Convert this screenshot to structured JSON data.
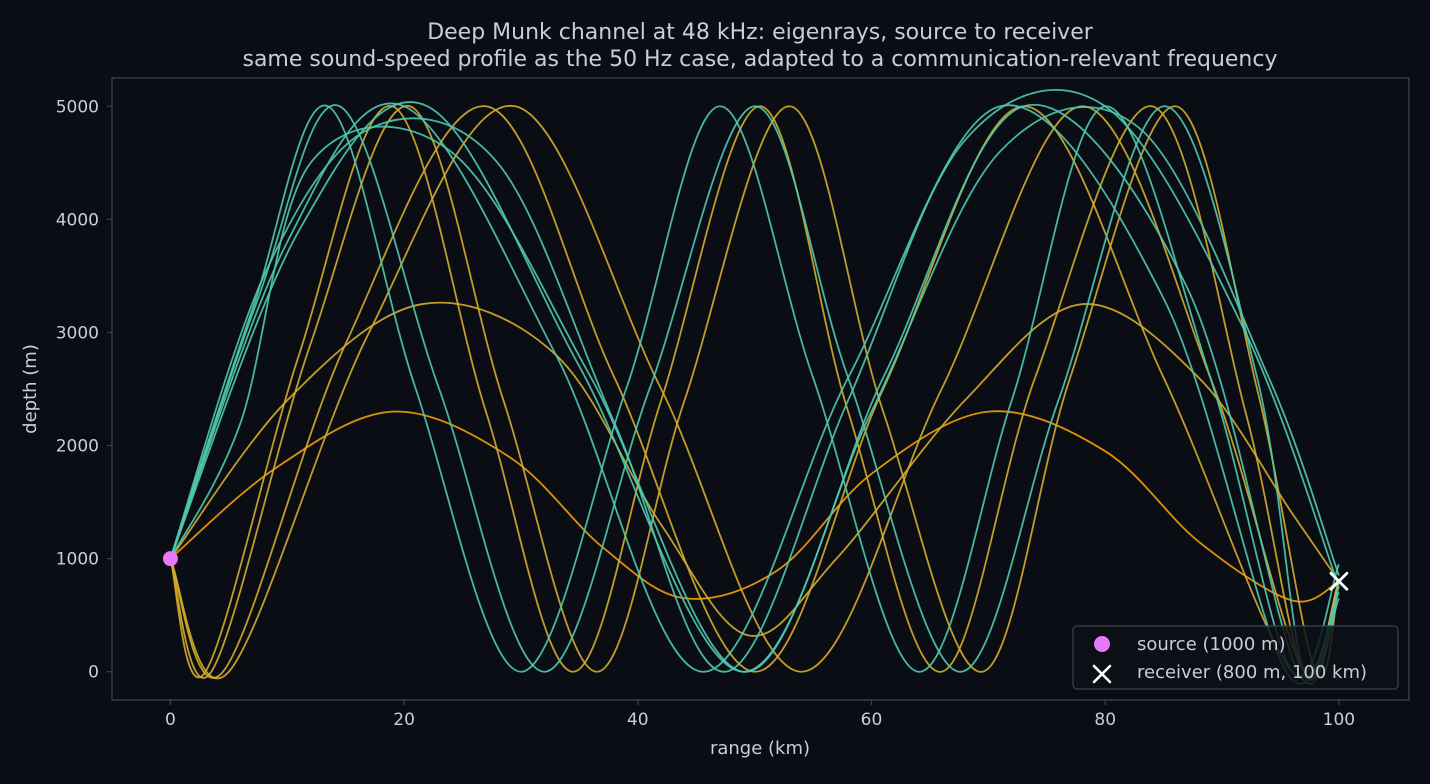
{
  "chart_data": {
    "type": "line",
    "title": "Deep Munk channel at 48 kHz: eigenrays, source to receiver",
    "subtitle": "same sound-speed profile as the 50 Hz case, adapted to a communication-relevant frequency",
    "xlabel": "range (km)",
    "ylabel": "depth (m)",
    "xlim": [
      -5,
      106
    ],
    "ylim": [
      5250,
      -250
    ],
    "y_inverted": true,
    "x_ticks": [
      0,
      20,
      40,
      60,
      80,
      100
    ],
    "y_ticks": [
      0,
      1000,
      2000,
      3000,
      4000,
      5000
    ],
    "grid": false,
    "legend_position": "lower-right",
    "legend": [
      {
        "label": "source (1000 m)",
        "marker": "circle",
        "color": "#e879f9"
      },
      {
        "label": "receiver (800 m, 100 km)",
        "marker": "x",
        "color": "#ffffff"
      }
    ],
    "source": {
      "x": 0,
      "y": 1000
    },
    "receiver": {
      "x": 100,
      "y": 800
    },
    "colors": {
      "background": "#0a0d13",
      "axes_edge": "#3a434f",
      "text": "#c9ced6",
      "refracted_ray": "#f59e0b",
      "surface_bounce_ray": "#d4ad2e",
      "bottom_bounce_ray": "#4fc9b0",
      "source_marker": "#e879f9",
      "receiver_marker": "#ffffff"
    },
    "series": [
      {
        "color": "#f59e0b",
        "points": [
          [
            0,
            1000
          ],
          [
            9,
            1800
          ],
          [
            19,
            2300
          ],
          [
            29,
            1900
          ],
          [
            37,
            1100
          ],
          [
            44,
            650
          ],
          [
            52,
            900
          ],
          [
            60,
            1750
          ],
          [
            70,
            2300
          ],
          [
            80,
            1950
          ],
          [
            88,
            1150
          ],
          [
            96,
            630
          ],
          [
            100,
            800
          ]
        ]
      },
      {
        "color": "#d4ad2e",
        "points": [
          [
            0,
            1000
          ],
          [
            10,
            2400
          ],
          [
            21.5,
            3250
          ],
          [
            33,
            2800
          ],
          [
            42,
            1300
          ],
          [
            49.5,
            320
          ],
          [
            57,
            1000
          ],
          [
            68,
            2400
          ],
          [
            78,
            3250
          ],
          [
            88,
            2600
          ],
          [
            96,
            1400
          ],
          [
            100,
            800
          ]
        ]
      },
      {
        "color": "#d4ad2e",
        "points": [
          [
            0,
            1000
          ],
          [
            3,
            0
          ],
          [
            11,
            2800
          ],
          [
            19,
            5000
          ],
          [
            27,
            2300
          ],
          [
            34.5,
            0
          ],
          [
            42,
            2400
          ],
          [
            50.5,
            5000
          ],
          [
            58,
            2300
          ],
          [
            66,
            0
          ],
          [
            74,
            2600
          ],
          [
            84,
            5000
          ],
          [
            92,
            2300
          ],
          [
            97,
            0
          ],
          [
            100,
            800
          ]
        ]
      },
      {
        "color": "#d4ad2e",
        "points": [
          [
            0,
            1000
          ],
          [
            3.5,
            0
          ],
          [
            12,
            2900
          ],
          [
            20.5,
            5000
          ],
          [
            28.5,
            2400
          ],
          [
            36.5,
            0
          ],
          [
            44,
            2400
          ],
          [
            53,
            5000
          ],
          [
            61,
            2300
          ],
          [
            69.5,
            0
          ],
          [
            77,
            2600
          ],
          [
            86,
            5000
          ],
          [
            93,
            2500
          ],
          [
            98,
            0
          ],
          [
            100,
            800
          ]
        ]
      },
      {
        "color": "#d4ad2e",
        "points": [
          [
            0,
            1000
          ],
          [
            4.5,
            0
          ],
          [
            15,
            2900
          ],
          [
            27,
            5000
          ],
          [
            38,
            2600
          ],
          [
            50,
            0
          ],
          [
            61,
            2500
          ],
          [
            73,
            5000
          ],
          [
            85,
            2600
          ],
          [
            96,
            0
          ],
          [
            100,
            800
          ]
        ]
      },
      {
        "color": "#d4ad2e",
        "points": [
          [
            0,
            1000
          ],
          [
            5,
            0
          ],
          [
            17,
            3000
          ],
          [
            29.5,
            5000
          ],
          [
            42,
            2500
          ],
          [
            54,
            0
          ],
          [
            66,
            2500
          ],
          [
            78,
            5000
          ],
          [
            89,
            2600
          ],
          [
            97,
            0
          ],
          [
            100,
            800
          ]
        ]
      },
      {
        "color": "#4fc9b0",
        "points": [
          [
            0,
            1000
          ],
          [
            7,
            3200
          ],
          [
            13.5,
            5000
          ],
          [
            21,
            2500
          ],
          [
            30,
            0
          ],
          [
            39,
            2500
          ],
          [
            47,
            5000
          ],
          [
            55,
            2600
          ],
          [
            64,
            0
          ],
          [
            72,
            2400
          ],
          [
            80,
            5000
          ],
          [
            89,
            2600
          ],
          [
            96,
            0
          ],
          [
            100,
            950
          ]
        ]
      },
      {
        "color": "#4fc9b0",
        "points": [
          [
            0,
            1000
          ],
          [
            7.5,
            3300
          ],
          [
            14.5,
            5000
          ],
          [
            23,
            2500
          ],
          [
            32,
            0
          ],
          [
            41,
            2500
          ],
          [
            50,
            5000
          ],
          [
            58,
            2600
          ],
          [
            67.5,
            0
          ],
          [
            76,
            2400
          ],
          [
            85,
            5000
          ],
          [
            93,
            2600
          ],
          [
            97,
            0
          ],
          [
            100,
            650
          ]
        ]
      },
      {
        "color": "#4fc9b0",
        "points": [
          [
            0,
            1000
          ],
          [
            10,
            3800
          ],
          [
            20,
            5000
          ],
          [
            33,
            2800
          ],
          [
            45.5,
            0
          ],
          [
            58,
            2600
          ],
          [
            71,
            5000
          ],
          [
            85,
            3300
          ],
          [
            95.5,
            0
          ],
          [
            100,
            700
          ]
        ]
      },
      {
        "color": "#4fc9b0",
        "points": [
          [
            0,
            1000
          ],
          [
            11,
            3900
          ],
          [
            22,
            5000
          ],
          [
            35,
            2700
          ],
          [
            49,
            0
          ],
          [
            61,
            2600
          ],
          [
            73,
            5000
          ],
          [
            87,
            3400
          ],
          [
            96.5,
            0
          ],
          [
            100,
            750
          ]
        ]
      },
      {
        "color": "#4fc9b0",
        "points": [
          [
            0,
            1000
          ],
          [
            8,
            3500
          ],
          [
            17,
            4800
          ],
          [
            28,
            4500
          ],
          [
            38,
            2200
          ],
          [
            47.5,
            0
          ],
          [
            58,
            2400
          ],
          [
            68,
            4700
          ],
          [
            80,
            5000
          ],
          [
            92,
            3000
          ],
          [
            100,
            750
          ]
        ]
      },
      {
        "color": "#4fc9b0",
        "points": [
          [
            0,
            1000
          ],
          [
            6,
            2200
          ],
          [
            12,
            4500
          ],
          [
            24,
            4600
          ],
          [
            36,
            2600
          ],
          [
            49,
            0
          ],
          [
            60,
            2300
          ],
          [
            71,
            4600
          ],
          [
            83,
            4800
          ],
          [
            94,
            2600
          ],
          [
            100,
            850
          ]
        ]
      }
    ]
  }
}
